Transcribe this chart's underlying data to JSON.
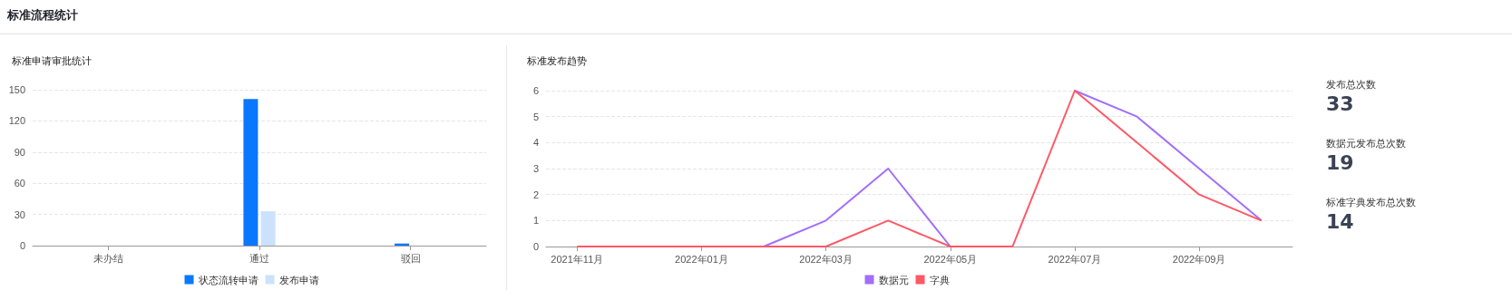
{
  "chart_data": [
    {
      "type": "bar",
      "title": "标准申请审批统计",
      "annotations": [
        "标准流程统计"
      ],
      "categories": [
        "未办结",
        "通过",
        "驳回"
      ],
      "series": [
        {
          "name": "状态流转申请",
          "color": "#0a77ff",
          "values": [
            0,
            141,
            2
          ]
        },
        {
          "name": "发布申请",
          "color": "#cce2fc",
          "values": [
            0,
            33,
            0
          ]
        }
      ],
      "ylim": [
        0,
        150
      ],
      "yticks": [
        0,
        30,
        60,
        90,
        120,
        150
      ],
      "grid": "y",
      "legend": "bottom"
    },
    {
      "type": "line",
      "title": "标准发布趋势",
      "categories": [
        "2021年11月",
        null,
        "2022年01月",
        null,
        "2022年03月",
        null,
        "2022年05月",
        null,
        "2022年07月",
        null,
        "2022年09月",
        null
      ],
      "series": [
        {
          "name": "数据元",
          "color": "#a26efc",
          "values": [
            null,
            null,
            null,
            0,
            1,
            3,
            0,
            null,
            6,
            5,
            3,
            1
          ]
        },
        {
          "name": "字典",
          "color": "#fd5966",
          "values": [
            0,
            0,
            0,
            0,
            0,
            1,
            0,
            0,
            6,
            4,
            2,
            1
          ]
        }
      ],
      "ylim": [
        0,
        6
      ],
      "yticks": [
        0,
        1,
        2,
        3,
        4,
        5,
        6
      ],
      "grid": "y",
      "legend": "bottom",
      "marker": "none",
      "line_style": "solid"
    },
    {
      "type": "other",
      "categories": [
        "发布总次数",
        "数据元发布总次数",
        "标准字典发布总次数"
      ],
      "values": [
        33,
        19,
        14
      ],
      "data_labels": true
    }
  ]
}
